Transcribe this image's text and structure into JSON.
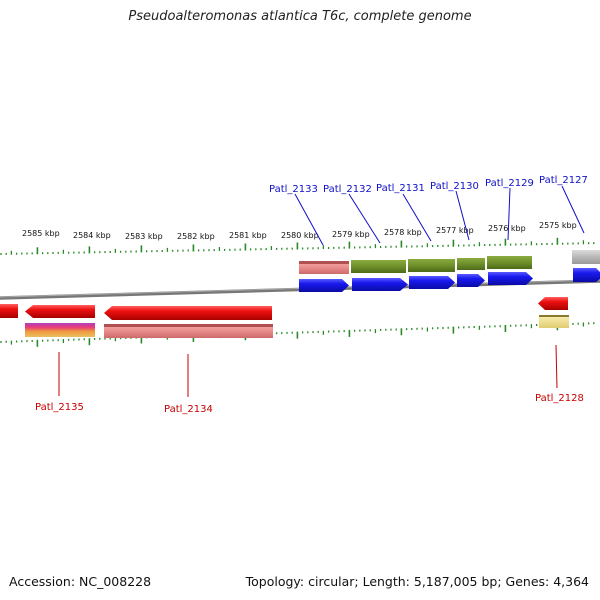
{
  "title": "Pseudoalteromonas atlantica T6c, complete genome",
  "footer": {
    "accession": "Accession: NC_008228",
    "topology": "Topology: circular; Length: 5,187,005 bp; Genes: 4,364"
  },
  "scale": {
    "unit": "kbp",
    "ticks": [
      "2585 kbp",
      "2584 kbp",
      "2583 kbp",
      "2582 kbp",
      "2581 kbp",
      "2580 kbp",
      "2579 kbp",
      "2578 kbp",
      "2577 kbp",
      "2576 kbp",
      "2575 kbp"
    ]
  },
  "genes": {
    "forward": [
      "Patl_2133",
      "Patl_2132",
      "Patl_2131",
      "Patl_2130",
      "Patl_2129",
      "Patl_2127"
    ],
    "reverse": [
      "Patl_2135",
      "Patl_2134",
      "Patl_2128"
    ]
  },
  "colors": {
    "forward_label": "#1010c8",
    "reverse_label": "#c80000",
    "cds_forward": "#1a1aee",
    "cds_reverse": "#ee1111",
    "tick": "#2a8a2a",
    "backbone": "#777777",
    "feature_olive": "#6f8f2a",
    "feature_pink": "#e88a8a",
    "feature_gray": "#b8b8b8",
    "feature_yellow": "#eedd88"
  }
}
